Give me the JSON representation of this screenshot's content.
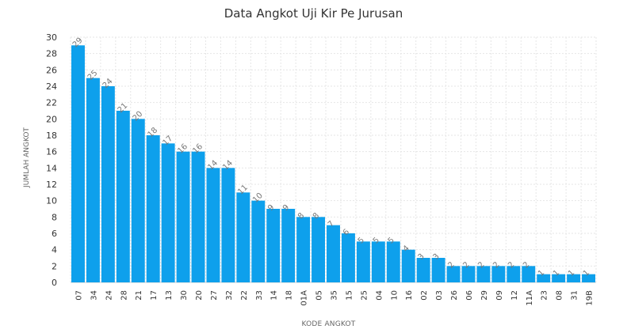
{
  "chart_data": {
    "type": "bar",
    "title": "Data Angkot Uji Kir Pe Jurusan",
    "xlabel": "KODE ANGKOT",
    "ylabel": "JUMLAH ANGKOT",
    "ylim": [
      0,
      30
    ],
    "yticks": [
      0,
      2,
      4,
      6,
      8,
      10,
      12,
      14,
      16,
      18,
      20,
      22,
      24,
      26,
      28,
      30
    ],
    "grid": true,
    "bar_color": "#0ea0ec",
    "categories": [
      "07",
      "34",
      "24",
      "28",
      "21",
      "17",
      "13",
      "30",
      "20",
      "27",
      "32",
      "22",
      "33",
      "14",
      "18",
      "01A",
      "05",
      "35",
      "15",
      "25",
      "04",
      "10",
      "16",
      "02",
      "03",
      "26",
      "06",
      "29",
      "09",
      "12",
      "11A",
      "23",
      "08",
      "31",
      "19B"
    ],
    "values": [
      29,
      25,
      24,
      21,
      20,
      18,
      17,
      16,
      16,
      14,
      14,
      11,
      10,
      9,
      9,
      8,
      8,
      7,
      6,
      5,
      5,
      5,
      4,
      3,
      3,
      2,
      2,
      2,
      2,
      2,
      2,
      1,
      1,
      1,
      1
    ]
  }
}
